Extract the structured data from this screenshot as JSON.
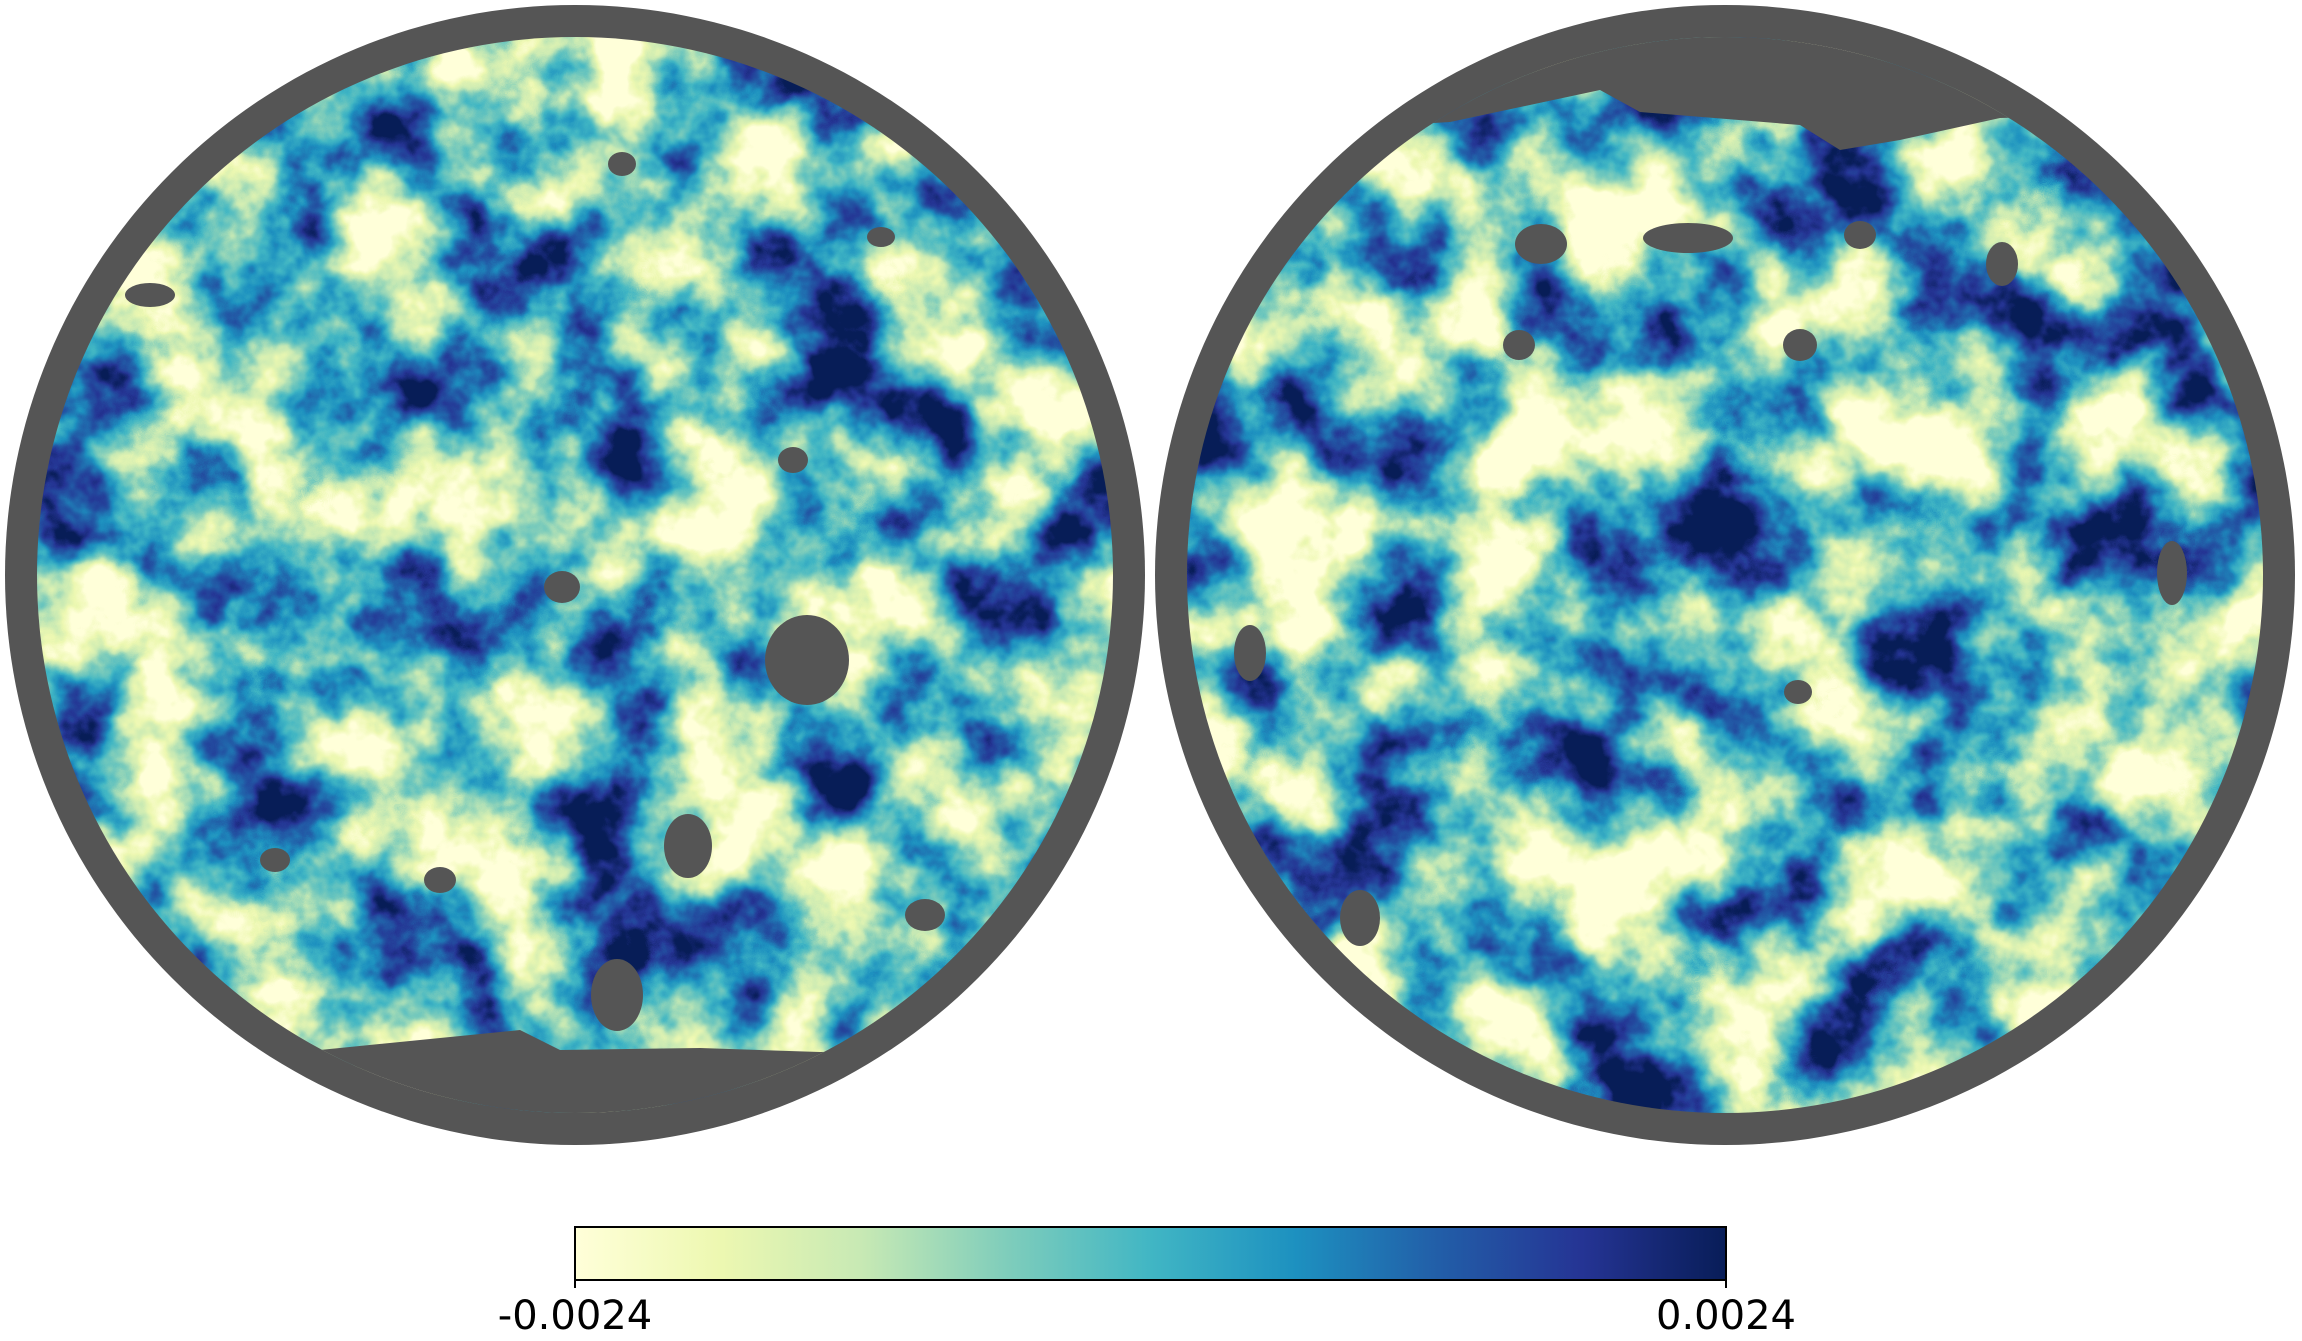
{
  "chart_data": {
    "type": "healpix-map",
    "colorbar": {
      "lim": [
        -0.0024,
        0.0024
      ],
      "ticks": [
        -0.0024,
        0.0024
      ],
      "colors": [
        "#ffffd9",
        "#edf8b1",
        "#c7e9b4",
        "#7fcdbb",
        "#41b6c4",
        "#1d91c0",
        "#225ea8",
        "#253494",
        "#081d58"
      ]
    }
  }
}
